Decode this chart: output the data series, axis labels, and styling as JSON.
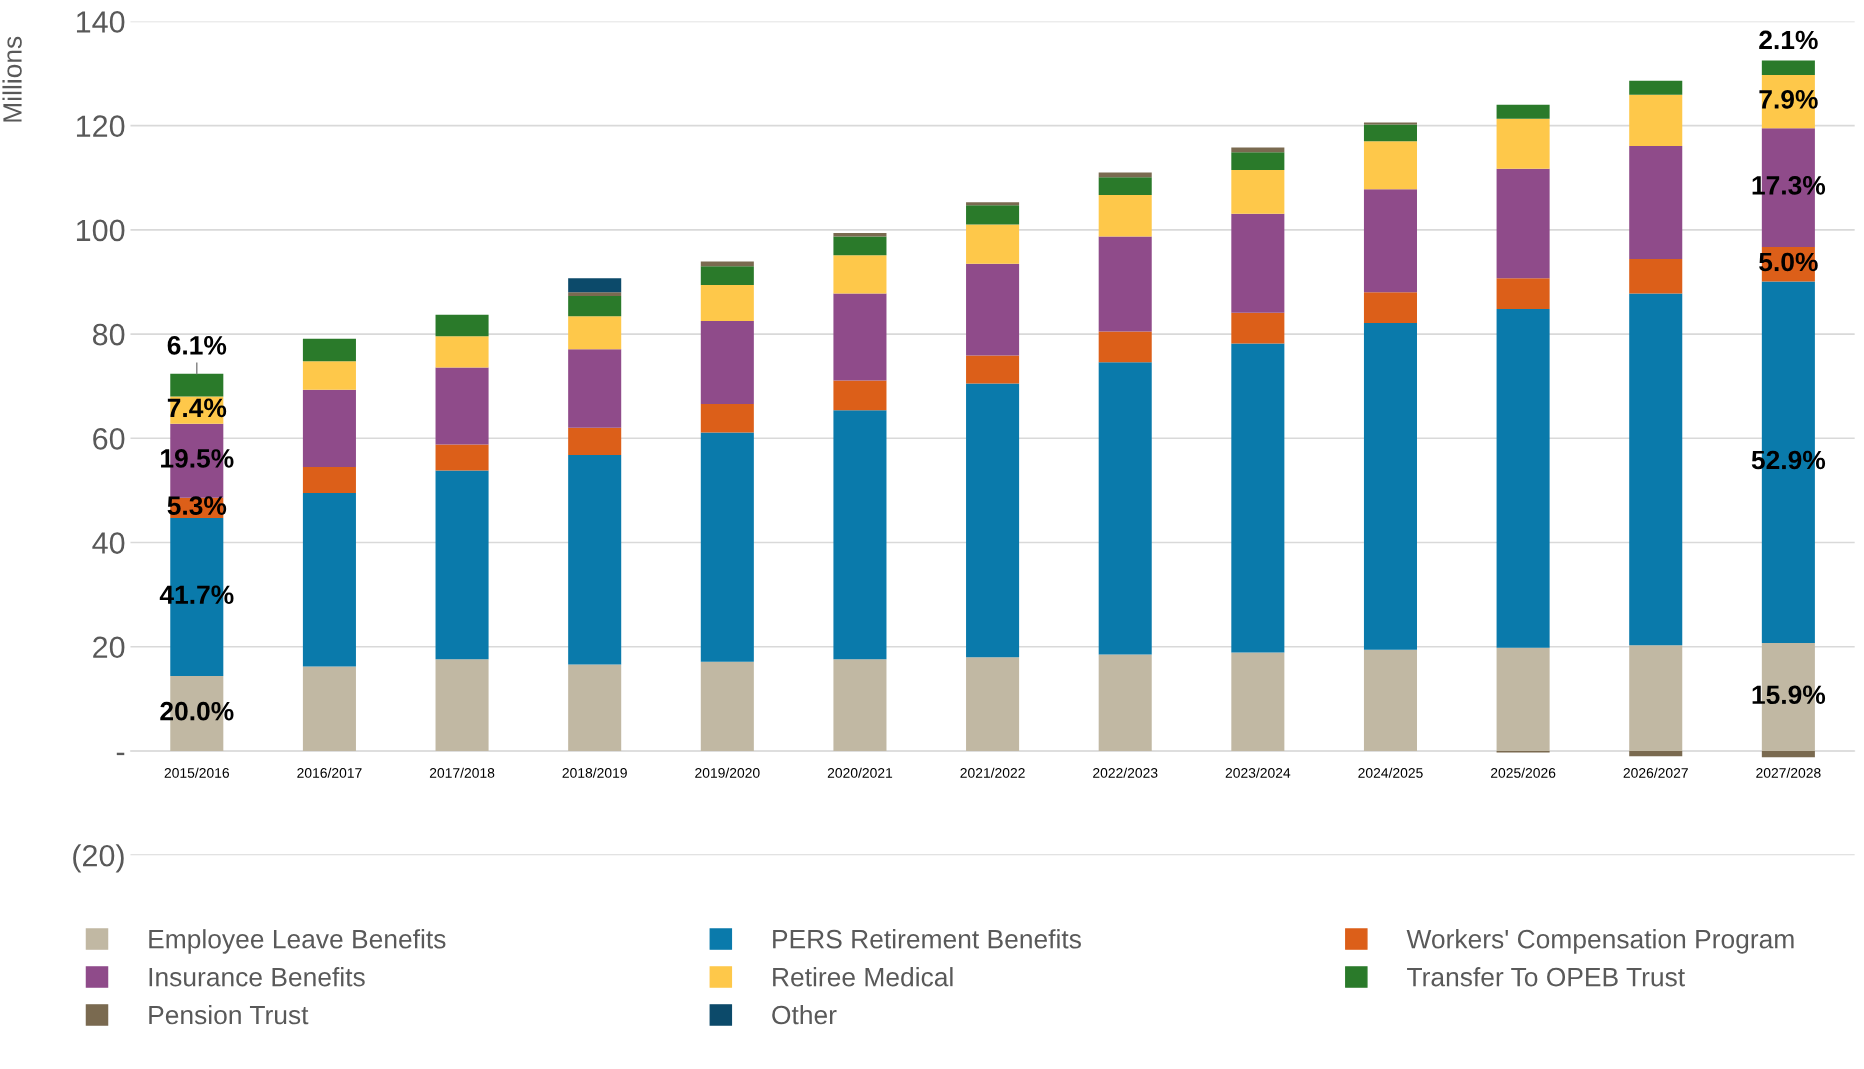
{
  "chart_data": {
    "type": "bar",
    "stacked": true,
    "ylabel": "Millions",
    "categories": [
      "2015/2016",
      "2016/2017",
      "2017/2018",
      "2018/2019",
      "2019/2020",
      "2020/2021",
      "2021/2022",
      "2022/2023",
      "2023/2024",
      "2024/2025",
      "2025/2026",
      "2026/2027",
      "2027/2028"
    ],
    "series": [
      {
        "name": "Employee Leave Benefits",
        "color": "#c1b8a3",
        "values": [
          14.4,
          16.2,
          17.6,
          16.6,
          17.1,
          17.6,
          18.0,
          18.5,
          18.9,
          19.4,
          19.8,
          20.3,
          20.7
        ]
      },
      {
        "name": "PERS Retirement Benefits",
        "color": "#0a7aab",
        "values": [
          30.3,
          33.3,
          36.2,
          40.2,
          44.0,
          47.8,
          52.5,
          56.1,
          59.3,
          62.7,
          65.0,
          67.5,
          69.4
        ]
      },
      {
        "name": "Workers' Compensation Program",
        "color": "#dc5f19",
        "values": [
          3.9,
          5.0,
          5.0,
          5.2,
          5.5,
          5.7,
          5.4,
          5.9,
          5.9,
          5.9,
          5.9,
          6.6,
          6.6
        ]
      },
      {
        "name": "Insurance Benefits",
        "color": "#8f4b8a",
        "values": [
          14.2,
          14.8,
          14.8,
          15.1,
          15.9,
          16.7,
          17.6,
          18.2,
          19.0,
          19.8,
          21.0,
          21.7,
          22.8
        ]
      },
      {
        "name": "Retiree Medical",
        "color": "#fec84a",
        "values": [
          5.2,
          5.5,
          6.0,
          6.3,
          6.9,
          7.3,
          7.5,
          8.0,
          8.4,
          9.2,
          9.6,
          9.8,
          10.2
        ]
      },
      {
        "name": "Transfer To OPEB Trust",
        "color": "#2a7a2a",
        "values": [
          4.4,
          4.3,
          4.1,
          3.9,
          3.6,
          3.6,
          3.7,
          3.4,
          3.4,
          3.2,
          2.7,
          2.7,
          2.8
        ]
      },
      {
        "name": "Pension Trust",
        "color": "#7a6a50",
        "values": [
          null,
          null,
          null,
          0.7,
          0.9,
          0.7,
          0.6,
          0.9,
          0.9,
          0.4,
          -0.3,
          -1.0,
          -1.2
        ]
      },
      {
        "name": "Other",
        "color": "#0c4a6a",
        "values": [
          null,
          null,
          null,
          2.7,
          null,
          null,
          null,
          null,
          null,
          null,
          null,
          null,
          null
        ]
      }
    ],
    "ylim": [
      -20,
      140
    ],
    "yticks": [
      {
        "value": -20,
        "label": "(20)"
      },
      {
        "value": 0,
        "label": "-"
      },
      20,
      40,
      60,
      80,
      100,
      120,
      140
    ],
    "grid": "y",
    "legend": "bottom",
    "annotations": [
      "20.0%",
      "41.7%",
      "5.3%",
      "19.5%",
      "7.4%",
      "6.1%",
      "15.9%",
      "52.9%",
      "5.0%",
      "17.3%",
      "7.9%",
      "2.1%"
    ]
  }
}
